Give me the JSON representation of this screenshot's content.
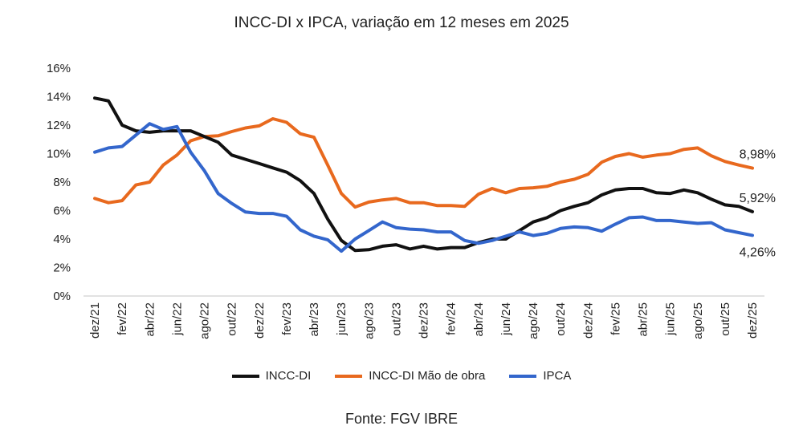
{
  "chart_data": {
    "type": "line",
    "title": "INCC-DI x IPCA, variação em 12 meses em 2025",
    "source": "Fonte: FGV IBRE",
    "x_tick_labels": [
      "dez/21",
      "fev/22",
      "abr/22",
      "jun/22",
      "ago/22",
      "out/22",
      "dez/22",
      "fev/23",
      "abr/23",
      "jun/23",
      "ago/23",
      "out/23",
      "dez/23",
      "fev/24",
      "abr/24",
      "jun/24",
      "ago/24",
      "out/24",
      "dez/24",
      "fev/25",
      "abr/25",
      "jun/25",
      "ago/25",
      "out/25",
      "dez/25"
    ],
    "x_range": [
      "dez/21",
      "dez/25"
    ],
    "frequency": "monthly",
    "y_ticks": [
      "0%",
      "2%",
      "4%",
      "6%",
      "8%",
      "10%",
      "12%",
      "14%",
      "16%"
    ],
    "ylim": [
      0,
      16
    ],
    "grid": false,
    "legend_position": "bottom",
    "series": [
      {
        "name": "INCC-DI",
        "color": "#111111",
        "end_label": "5,92%",
        "values": [
          13.9,
          13.7,
          12.0,
          11.6,
          11.5,
          11.6,
          11.6,
          11.6,
          11.2,
          10.8,
          9.9,
          9.6,
          9.3,
          9.0,
          8.7,
          8.1,
          7.2,
          5.4,
          3.9,
          3.2,
          3.25,
          3.5,
          3.6,
          3.3,
          3.5,
          3.3,
          3.4,
          3.4,
          3.75,
          4.0,
          4.0,
          4.6,
          5.2,
          5.5,
          6.0,
          6.3,
          6.55,
          7.1,
          7.45,
          7.55,
          7.55,
          7.25,
          7.2,
          7.45,
          7.25,
          6.8,
          6.4,
          6.3,
          5.92
        ]
      },
      {
        "name": "INCC-DI Mão de obra",
        "color": "#E8691E",
        "end_label": "8,98%",
        "values": [
          6.85,
          6.55,
          6.7,
          7.8,
          8.0,
          9.2,
          9.9,
          10.9,
          11.2,
          11.25,
          11.55,
          11.8,
          11.95,
          12.45,
          12.2,
          11.4,
          11.15,
          9.2,
          7.2,
          6.25,
          6.6,
          6.75,
          6.85,
          6.55,
          6.55,
          6.35,
          6.35,
          6.3,
          7.15,
          7.55,
          7.25,
          7.55,
          7.6,
          7.7,
          8.0,
          8.2,
          8.55,
          9.4,
          9.8,
          10.0,
          9.75,
          9.9,
          10.0,
          10.3,
          10.4,
          9.85,
          9.45,
          9.2,
          8.98
        ]
      },
      {
        "name": "IPCA",
        "color": "#3366CC",
        "end_label": "4,26%",
        "values": [
          10.1,
          10.4,
          10.5,
          11.3,
          12.1,
          11.7,
          11.9,
          10.1,
          8.8,
          7.2,
          6.5,
          5.9,
          5.8,
          5.8,
          5.6,
          4.65,
          4.2,
          3.95,
          3.15,
          4.0,
          4.6,
          5.2,
          4.8,
          4.7,
          4.65,
          4.5,
          4.5,
          3.9,
          3.7,
          3.9,
          4.2,
          4.5,
          4.25,
          4.4,
          4.75,
          4.85,
          4.8,
          4.55,
          5.05,
          5.5,
          5.55,
          5.3,
          5.3,
          5.2,
          5.1,
          5.15,
          4.65,
          4.45,
          4.26
        ]
      }
    ]
  }
}
